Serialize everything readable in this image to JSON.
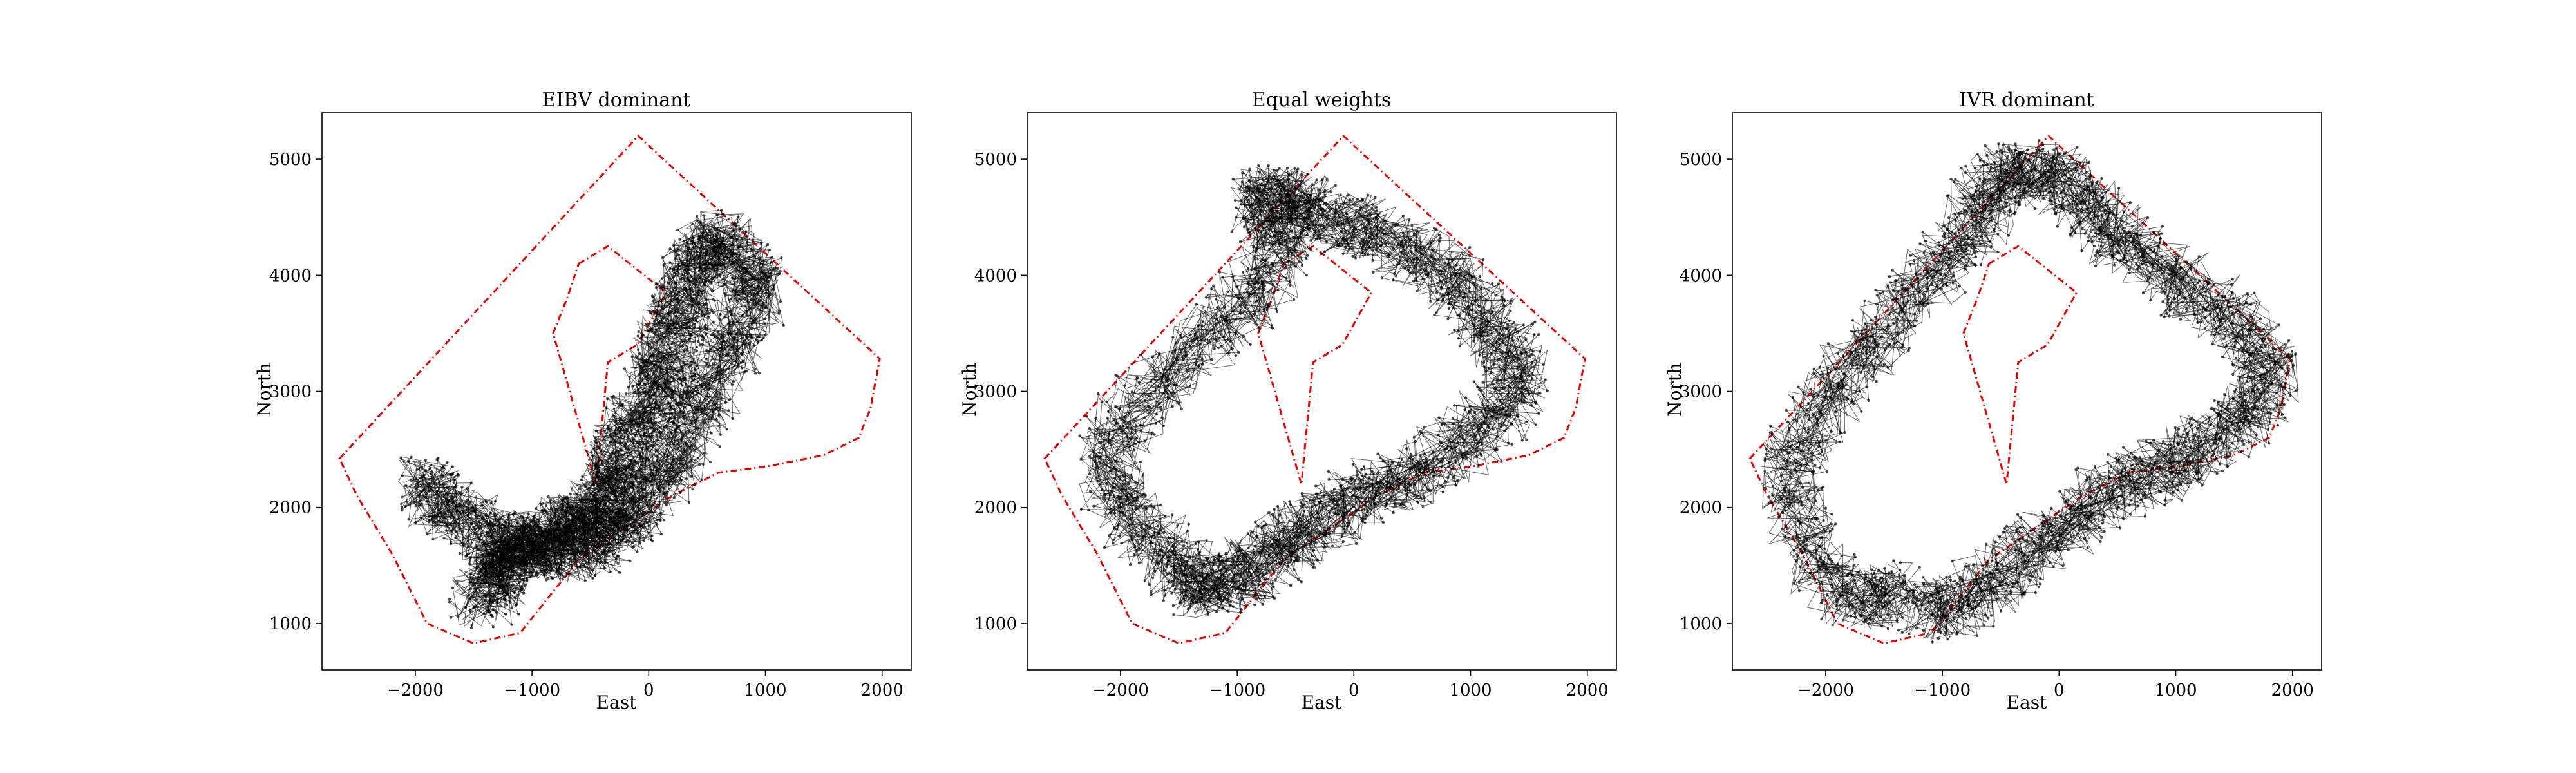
{
  "figure": {
    "panels": [
      {
        "title": "EIBV dominant"
      },
      {
        "title": "Equal weights"
      },
      {
        "title": "IVR dominant"
      }
    ]
  },
  "chart_data": [
    {
      "type": "line",
      "title": "EIBV dominant",
      "xlabel": "East",
      "ylabel": "North",
      "xlim": [
        -2800,
        2250
      ],
      "ylim": [
        600,
        5400
      ],
      "xticks": [
        -2000,
        -1000,
        0,
        1000,
        2000
      ],
      "yticks": [
        1000,
        2000,
        3000,
        4000,
        5000
      ],
      "grid": false,
      "series": [
        {
          "role": "boundary",
          "style": "red dash-dot",
          "x": [
            -2650,
            -90,
            1980,
            1900,
            1800,
            1500,
            1000,
            600,
            200,
            -600,
            -1100,
            -1500,
            -1900,
            -2200,
            -2500
          ],
          "y": [
            2420,
            5200,
            3280,
            2850,
            2600,
            2450,
            2350,
            2300,
            2100,
            1550,
            920,
            830,
            1000,
            1600,
            2100
          ]
        },
        {
          "role": "hole",
          "style": "red dash-dot",
          "x": [
            -600,
            -350,
            150,
            -100,
            -350,
            -450,
            -820,
            -700
          ],
          "y": [
            4100,
            4250,
            3850,
            3400,
            3250,
            2200,
            3500,
            3800
          ]
        },
        {
          "role": "trajectory",
          "style": "black dots with lines",
          "x": [
            -1450,
            -1300,
            -1250,
            -1100,
            -900,
            -700,
            -500,
            -400,
            -300,
            -200,
            0,
            100,
            200,
            300,
            400,
            600,
            800,
            900,
            700,
            500,
            300,
            100,
            -100,
            -300,
            -600,
            -900,
            -1200,
            -1500,
            -1800,
            -1900
          ],
          "y": [
            1200,
            1380,
            1550,
            1650,
            1750,
            1850,
            1900,
            2100,
            2300,
            2600,
            2900,
            3200,
            3500,
            3800,
            4100,
            4300,
            4100,
            3800,
            3400,
            3000,
            2600,
            2300,
            2000,
            1800,
            1650,
            1600,
            1700,
            1850,
            2050,
            2200
          ]
        }
      ]
    },
    {
      "type": "line",
      "title": "Equal weights",
      "xlabel": "East",
      "ylabel": "North",
      "xlim": [
        -2800,
        2250
      ],
      "ylim": [
        600,
        5400
      ],
      "xticks": [
        -2000,
        -1000,
        0,
        1000,
        2000
      ],
      "yticks": [
        1000,
        2000,
        3000,
        4000,
        5000
      ],
      "grid": false,
      "series": [
        {
          "role": "boundary",
          "style": "red dash-dot",
          "x": [
            -2650,
            -90,
            1980,
            1900,
            1800,
            1500,
            1000,
            600,
            200,
            -600,
            -1100,
            -1500,
            -1900,
            -2200,
            -2500
          ],
          "y": [
            2420,
            5200,
            3280,
            2850,
            2600,
            2450,
            2350,
            2300,
            2100,
            1550,
            920,
            830,
            1000,
            1600,
            2100
          ]
        },
        {
          "role": "hole",
          "style": "red dash-dot",
          "x": [
            -600,
            -350,
            150,
            -100,
            -350,
            -450,
            -820,
            -700
          ],
          "y": [
            4100,
            4250,
            3850,
            3400,
            3250,
            2200,
            3500,
            3800
          ]
        },
        {
          "role": "trajectory",
          "style": "black dots with lines",
          "x": [
            -1300,
            -1500,
            -1900,
            -2100,
            -1800,
            -1300,
            -900,
            -600,
            -800,
            -600,
            -300,
            100,
            500,
            900,
            1200,
            1400,
            1100,
            700,
            300,
            -100,
            -400,
            -700,
            -1000,
            -1300
          ],
          "y": [
            1300,
            1500,
            1900,
            2400,
            2900,
            3400,
            3800,
            4300,
            4600,
            4700,
            4500,
            4400,
            4200,
            3900,
            3500,
            3100,
            2700,
            2400,
            2200,
            2000,
            1800,
            1600,
            1400,
            1300
          ]
        }
      ]
    },
    {
      "type": "line",
      "title": "IVR dominant",
      "xlabel": "East",
      "ylabel": "North",
      "xlim": [
        -2800,
        2250
      ],
      "ylim": [
        600,
        5400
      ],
      "xticks": [
        -2000,
        -1000,
        0,
        1000,
        2000
      ],
      "yticks": [
        1000,
        2000,
        3000,
        4000,
        5000
      ],
      "grid": false,
      "series": [
        {
          "role": "boundary",
          "style": "red dash-dot",
          "x": [
            -2650,
            -90,
            1980,
            1900,
            1800,
            1500,
            1000,
            600,
            200,
            -600,
            -1100,
            -1500,
            -1900,
            -2200,
            -2500
          ],
          "y": [
            2420,
            5200,
            3280,
            2850,
            2600,
            2450,
            2350,
            2300,
            2100,
            1550,
            920,
            830,
            1000,
            1600,
            2100
          ]
        },
        {
          "role": "hole",
          "style": "red dash-dot",
          "x": [
            -600,
            -350,
            150,
            -100,
            -350,
            -450,
            -820,
            -700
          ],
          "y": [
            4100,
            4250,
            3850,
            3400,
            3250,
            2200,
            3500,
            3800
          ]
        },
        {
          "role": "trajectory",
          "style": "black dots with lines",
          "x": [
            -1400,
            -1700,
            -2100,
            -2300,
            -2000,
            -1600,
            -1200,
            -800,
            -600,
            -300,
            0,
            300,
            700,
            1100,
            1500,
            1800,
            1600,
            1200,
            800,
            400,
            0,
            -400,
            -800,
            -1200
          ],
          "y": [
            1300,
            1200,
            1600,
            2300,
            2900,
            3400,
            3900,
            4300,
            4700,
            4900,
            4800,
            4500,
            4200,
            3900,
            3600,
            3200,
            2800,
            2500,
            2300,
            2100,
            1800,
            1500,
            1200,
            1100
          ]
        }
      ]
    }
  ]
}
